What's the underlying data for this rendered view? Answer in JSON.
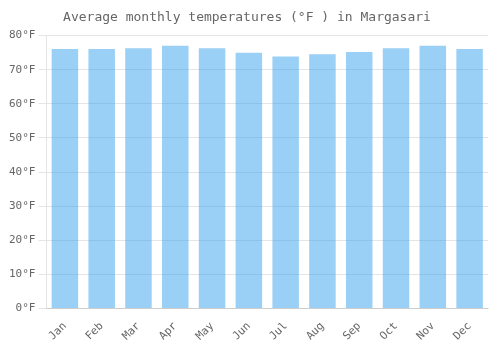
{
  "chart_data": {
    "type": "bar",
    "title": "Average monthly temperatures (°F ) in Margasari",
    "categories": [
      "Jan",
      "Feb",
      "Mar",
      "Apr",
      "May",
      "Jun",
      "Jul",
      "Aug",
      "Sep",
      "Oct",
      "Nov",
      "Dec"
    ],
    "values": [
      76.1,
      76.1,
      76.3,
      77.0,
      76.3,
      75.0,
      73.9,
      74.5,
      75.2,
      76.3,
      77.0,
      76.1
    ],
    "ylim": [
      0,
      80
    ],
    "yticks": [
      {
        "value": 0,
        "label": "0°F"
      },
      {
        "value": 10,
        "label": "10°F"
      },
      {
        "value": 20,
        "label": "20°F"
      },
      {
        "value": 30,
        "label": "30°F"
      },
      {
        "value": 40,
        "label": "40°F"
      },
      {
        "value": 50,
        "label": "50°F"
      },
      {
        "value": 60,
        "label": "60°F"
      },
      {
        "value": 70,
        "label": "70°F"
      },
      {
        "value": 80,
        "label": "80°F"
      }
    ],
    "grid": true
  }
}
